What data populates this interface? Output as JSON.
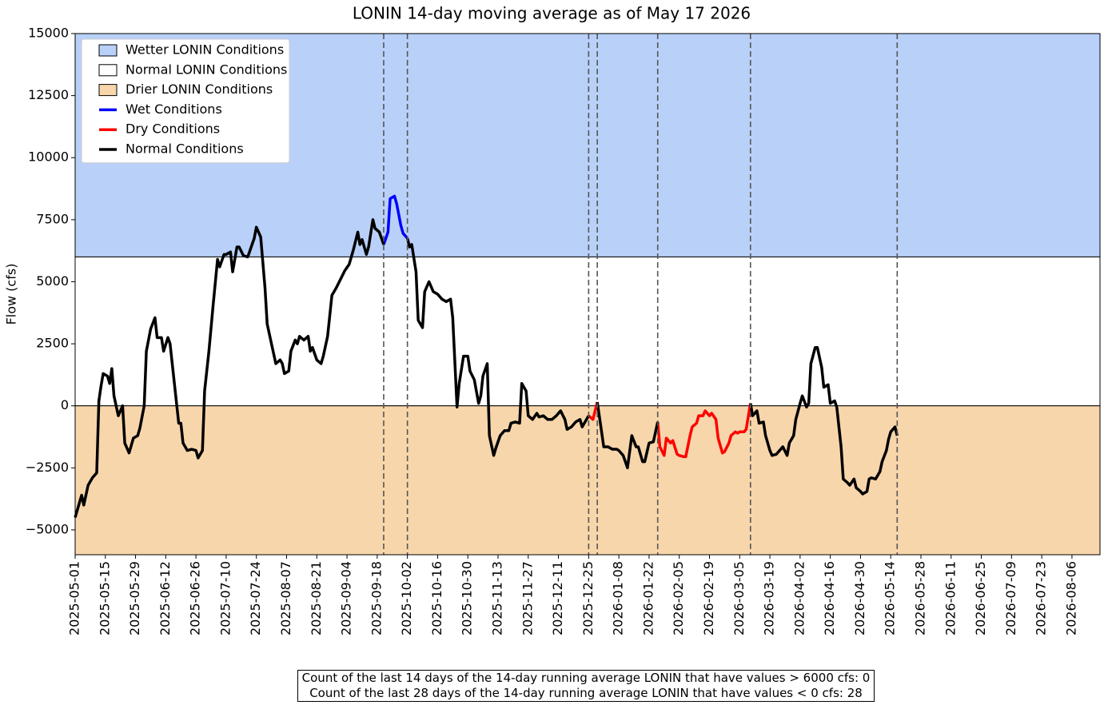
{
  "chart_data": {
    "type": "line",
    "title": "LONIN 14-day moving average as of May 17 2026",
    "y_label": "Flow (cfs)",
    "xlim": [
      "2025-05-01",
      "2026-08-19"
    ],
    "xticks": [
      "2025-05-01",
      "2025-05-15",
      "2025-05-29",
      "2025-06-12",
      "2025-06-26",
      "2025-07-10",
      "2025-07-24",
      "2025-08-07",
      "2025-08-21",
      "2025-09-04",
      "2025-09-18",
      "2025-10-02",
      "2025-10-16",
      "2025-10-30",
      "2025-11-13",
      "2025-11-27",
      "2025-12-11",
      "2025-12-25",
      "2026-01-08",
      "2026-01-22",
      "2026-02-05",
      "2026-02-19",
      "2026-03-05",
      "2026-03-19",
      "2026-04-02",
      "2026-04-16",
      "2026-04-30",
      "2026-05-14",
      "2026-05-28",
      "2026-06-11",
      "2026-06-25",
      "2026-07-09",
      "2026-07-23",
      "2026-08-06"
    ],
    "ylim": [
      -6000,
      15000
    ],
    "yticks": [
      {
        "value": -5000,
        "label": "−5000"
      },
      {
        "value": -2500,
        "label": "−2500"
      },
      0,
      2500,
      5000,
      7500,
      10000,
      12500,
      15000
    ],
    "bands": [
      {
        "name": "Wetter LONIN Conditions",
        "range": [
          6000,
          15000
        ],
        "color": "#b9d1f9"
      },
      {
        "name": "Normal LONIN Conditions",
        "range": [
          0,
          6000
        ],
        "color": "#ffffff"
      },
      {
        "name": "Drier LONIN Conditions",
        "range": [
          -6000,
          0
        ],
        "color": "#f8d6ab"
      }
    ],
    "vlines": [
      "2025-09-21",
      "2025-10-02",
      "2025-12-25",
      "2025-12-29",
      "2026-01-26",
      "2026-03-10",
      "2026-05-17"
    ],
    "legend": "upper left",
    "series": [
      {
        "name": "Wet Conditions",
        "color": "#0000ff",
        "x": [
          "2025-09-21",
          "2025-09-23",
          "2025-09-24",
          "2025-09-26",
          "2025-09-27",
          "2025-09-29",
          "2025-09-30",
          "2025-10-02"
        ],
        "values": [
          6500,
          7000,
          8350,
          8450,
          8150,
          7250,
          6950,
          6750
        ]
      },
      {
        "name": "Dry Conditions",
        "color": "#ff0000",
        "x": [
          "2025-12-25",
          "2025-12-27",
          "2025-12-28",
          "2025-12-29",
          "2026-01-05",
          "2026-01-26",
          "2026-01-27",
          "2026-01-29",
          "2026-01-30",
          "2026-02-01",
          "2026-02-02",
          "2026-02-04",
          "2026-02-05",
          "2026-02-07",
          "2026-02-08",
          "2026-02-10",
          "2026-02-11",
          "2026-02-13",
          "2026-02-14",
          "2026-02-16",
          "2026-02-17",
          "2026-02-19",
          "2026-02-20",
          "2026-02-22",
          "2026-02-23",
          "2026-02-25",
          "2026-02-26",
          "2026-02-28",
          "2026-03-01",
          "2026-03-03",
          "2026-03-04",
          "2026-03-05",
          "2026-03-07",
          "2026-03-08",
          "2026-03-10"
        ],
        "values": [
          -400,
          -550,
          -200,
          150,
          null,
          -650,
          -1650,
          -2000,
          -1300,
          -1500,
          -1400,
          -1950,
          -2000,
          -2050,
          -2050,
          -1200,
          -850,
          -700,
          -400,
          -400,
          -200,
          -400,
          -300,
          -550,
          -1300,
          -1900,
          -1850,
          -1500,
          -1200,
          -1050,
          -1100,
          -1050,
          -1050,
          -950,
          100
        ]
      },
      {
        "name": "Normal Conditions",
        "color": "#000000",
        "x": [
          "2025-05-01",
          "2025-05-04",
          "2025-05-05",
          "2025-05-07",
          "2025-05-09",
          "2025-05-11",
          "2025-05-12",
          "2025-05-13",
          "2025-05-14",
          "2025-05-16",
          "2025-05-17",
          "2025-05-18",
          "2025-05-19",
          "2025-05-21",
          "2025-05-23",
          "2025-05-24",
          "2025-05-26",
          "2025-05-28",
          "2025-05-30",
          "2025-05-31",
          "2025-06-02",
          "2025-06-03",
          "2025-06-05",
          "2025-06-07",
          "2025-06-08",
          "2025-06-10",
          "2025-06-11",
          "2025-06-13",
          "2025-06-14",
          "2025-06-16",
          "2025-06-18",
          "2025-06-19",
          "2025-06-20",
          "2025-06-22",
          "2025-06-24",
          "2025-06-26",
          "2025-06-27",
          "2025-06-29",
          "2025-06-30",
          "2025-07-02",
          "2025-07-04",
          "2025-07-06",
          "2025-07-07",
          "2025-07-09",
          "2025-07-10",
          "2025-07-12",
          "2025-07-13",
          "2025-07-15",
          "2025-07-16",
          "2025-07-18",
          "2025-07-20",
          "2025-07-22",
          "2025-07-23",
          "2025-07-24",
          "2025-07-26",
          "2025-07-28",
          "2025-07-29",
          "2025-07-31",
          "2025-08-02",
          "2025-08-04",
          "2025-08-05",
          "2025-08-06",
          "2025-08-08",
          "2025-08-09",
          "2025-08-11",
          "2025-08-12",
          "2025-08-13",
          "2025-08-15",
          "2025-08-17",
          "2025-08-18",
          "2025-08-19",
          "2025-08-21",
          "2025-08-23",
          "2025-08-24",
          "2025-08-26",
          "2025-08-28",
          "2025-08-30",
          "2025-09-01",
          "2025-09-03",
          "2025-09-05",
          "2025-09-07",
          "2025-09-09",
          "2025-09-10",
          "2025-09-11",
          "2025-09-13",
          "2025-09-14",
          "2025-09-16",
          "2025-09-17",
          "2025-09-19",
          "2025-09-21",
          "2025-09-26",
          "2025-10-02",
          "2025-10-03",
          "2025-10-04",
          "2025-10-06",
          "2025-10-07",
          "2025-10-09",
          "2025-10-10",
          "2025-10-12",
          "2025-10-14",
          "2025-10-16",
          "2025-10-18",
          "2025-10-20",
          "2025-10-22",
          "2025-10-23",
          "2025-10-25",
          "2025-10-26",
          "2025-10-28",
          "2025-10-30",
          "2025-10-31",
          "2025-11-02",
          "2025-11-04",
          "2025-11-05",
          "2025-11-06",
          "2025-11-08",
          "2025-11-09",
          "2025-11-11",
          "2025-11-12",
          "2025-11-14",
          "2025-11-16",
          "2025-11-18",
          "2025-11-19",
          "2025-11-21",
          "2025-11-23",
          "2025-11-24",
          "2025-11-26",
          "2025-11-27",
          "2025-11-29",
          "2025-12-01",
          "2025-12-02",
          "2025-12-04",
          "2025-12-06",
          "2025-12-08",
          "2025-12-10",
          "2025-12-12",
          "2025-12-14",
          "2025-12-15",
          "2025-12-17",
          "2025-12-19",
          "2025-12-21",
          "2025-12-22",
          "2025-12-24",
          "2025-12-25",
          "2025-12-27",
          "2025-12-29",
          "2025-12-31",
          "2026-01-01",
          "2026-01-03",
          "2026-01-05",
          "2026-01-07",
          "2026-01-08",
          "2026-01-10",
          "2026-01-12",
          "2026-01-14",
          "2026-01-16",
          "2026-01-17",
          "2026-01-19",
          "2026-01-20",
          "2026-01-22",
          "2026-01-24",
          "2026-01-25",
          "2026-01-26",
          "2026-02-16",
          "2026-03-10",
          "2026-03-11",
          "2026-03-13",
          "2026-03-14",
          "2026-03-16",
          "2026-03-17",
          "2026-03-19",
          "2026-03-20",
          "2026-03-22",
          "2026-03-24",
          "2026-03-25",
          "2026-03-27",
          "2026-03-28",
          "2026-03-30",
          "2026-03-31",
          "2026-04-02",
          "2026-04-03",
          "2026-04-05",
          "2026-04-06",
          "2026-04-07",
          "2026-04-09",
          "2026-04-10",
          "2026-04-12",
          "2026-04-13",
          "2026-04-15",
          "2026-04-16",
          "2026-04-18",
          "2026-04-19",
          "2026-04-21",
          "2026-04-22",
          "2026-04-24",
          "2026-04-25",
          "2026-04-27",
          "2026-04-28",
          "2026-04-30",
          "2026-05-01",
          "2026-05-03",
          "2026-05-04",
          "2026-05-05",
          "2026-05-07",
          "2026-05-09",
          "2026-05-10",
          "2026-05-12",
          "2026-05-13",
          "2026-05-14",
          "2026-05-16",
          "2026-05-17"
        ],
        "values": [
          -4500,
          -3600,
          -4000,
          -3200,
          -2900,
          -2700,
          200,
          800,
          1300,
          1200,
          900,
          1500,
          400,
          -400,
          0,
          -1500,
          -1900,
          -1300,
          -1200,
          -900,
          0,
          2200,
          3100,
          3550,
          2750,
          2750,
          2200,
          2750,
          2500,
          900,
          -700,
          -700,
          -1500,
          -1800,
          -1750,
          -1800,
          -2100,
          -1800,
          600,
          2200,
          4100,
          5900,
          5600,
          6100,
          6100,
          6200,
          5400,
          6400,
          6400,
          6050,
          6000,
          6500,
          6750,
          7200,
          6800,
          4750,
          3300,
          2500,
          1700,
          1850,
          1700,
          1300,
          1400,
          2200,
          2650,
          2500,
          2800,
          2650,
          2800,
          2200,
          2350,
          1850,
          1700,
          2000,
          2800,
          4450,
          4750,
          5100,
          5450,
          5700,
          6300,
          7000,
          6500,
          6700,
          6100,
          6400,
          7500,
          7150,
          7000,
          6500,
          null,
          6750,
          6400,
          6500,
          5400,
          3450,
          3150,
          4600,
          5000,
          4600,
          4500,
          4300,
          4200,
          4300,
          3550,
          -50,
          900,
          2000,
          2000,
          1400,
          1050,
          100,
          400,
          1200,
          1700,
          -1200,
          -2000,
          -1700,
          -1200,
          -1000,
          -1000,
          -700,
          -650,
          -700,
          900,
          600,
          -400,
          -550,
          -300,
          -450,
          -400,
          -550,
          -550,
          -400,
          -200,
          -550,
          -950,
          -850,
          -650,
          -550,
          -850,
          -550,
          -400,
          null,
          150,
          -1050,
          -1650,
          -1650,
          -1750,
          -1750,
          -1800,
          -2000,
          -2500,
          -1200,
          -1650,
          -1650,
          -2250,
          -2250,
          -1500,
          -1450,
          -1050,
          -650,
          null,
          100,
          -400,
          -200,
          -700,
          -650,
          -1200,
          -1800,
          -2000,
          -1950,
          -1750,
          -1650,
          -2000,
          -1500,
          -1200,
          -550,
          100,
          400,
          -50,
          100,
          1700,
          2350,
          2350,
          1550,
          750,
          850,
          100,
          200,
          -50,
          -1650,
          -2950,
          -3100,
          -3200,
          -2950,
          -3300,
          -3450,
          -3550,
          -3450,
          -2950,
          -2900,
          -2950,
          -2650,
          -2250,
          -1800,
          -1350,
          -1050,
          -850,
          -1200
        ]
      }
    ],
    "annotation": [
      "Count of the last 14 days of the 14-day running average LONIN that have values > 6000 cfs: 0",
      "Count of the last 28 days of the 14-day running average LONIN that have values < 0 cfs: 28"
    ]
  }
}
